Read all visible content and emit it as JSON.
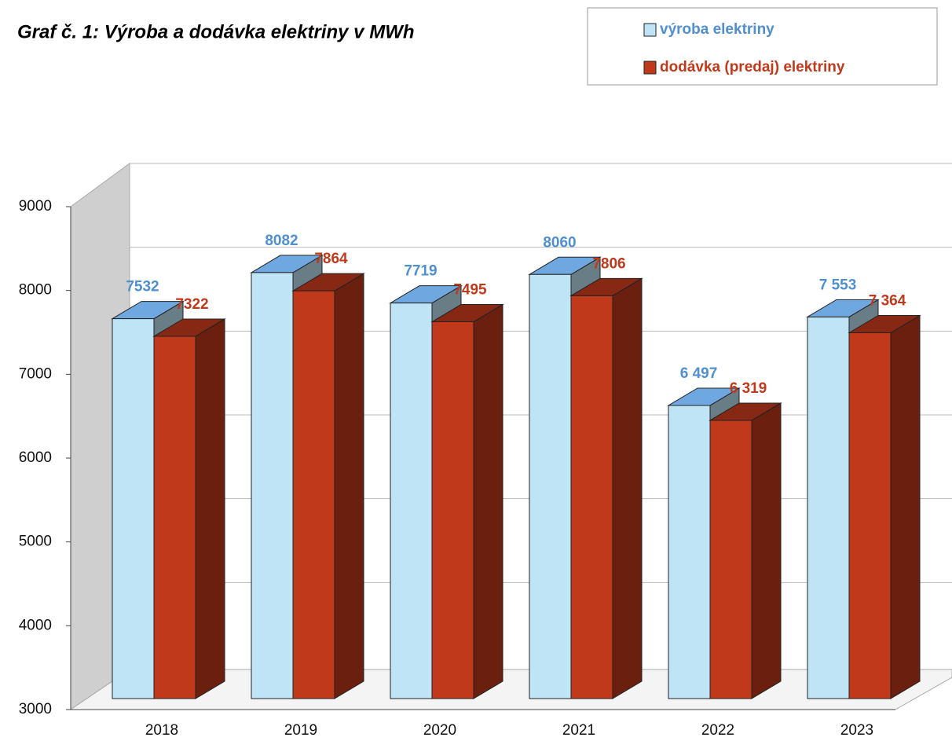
{
  "chart_data": {
    "type": "bar3d",
    "title": "Graf č. 1: Výroba a dodávka elektriny v MWh",
    "categories": [
      "2018",
      "2019",
      "2020",
      "2021",
      "2022",
      "2023"
    ],
    "series": [
      {
        "name": "výroba elektriny",
        "color": "#bfe4f6",
        "label_color": "#4f8fd0",
        "values": [
          7532,
          8082,
          7719,
          8060,
          6497,
          7553
        ],
        "value_labels": [
          "7532",
          "8082",
          "7719",
          "8060",
          "6 497",
          "7 553"
        ]
      },
      {
        "name": "dodávka (predaj) elektriny",
        "color": "#c0391b",
        "label_color": "#c0391b",
        "values": [
          7322,
          7864,
          7495,
          7806,
          6319,
          7364
        ],
        "value_labels": [
          "7322",
          "7864",
          "7495",
          "7806",
          "6 319",
          "7 364"
        ]
      }
    ],
    "ylim": [
      3000,
      9000
    ],
    "yticks": [
      3000,
      4000,
      5000,
      6000,
      7000,
      8000,
      9000
    ],
    "grid": true,
    "legend": "top-right"
  }
}
